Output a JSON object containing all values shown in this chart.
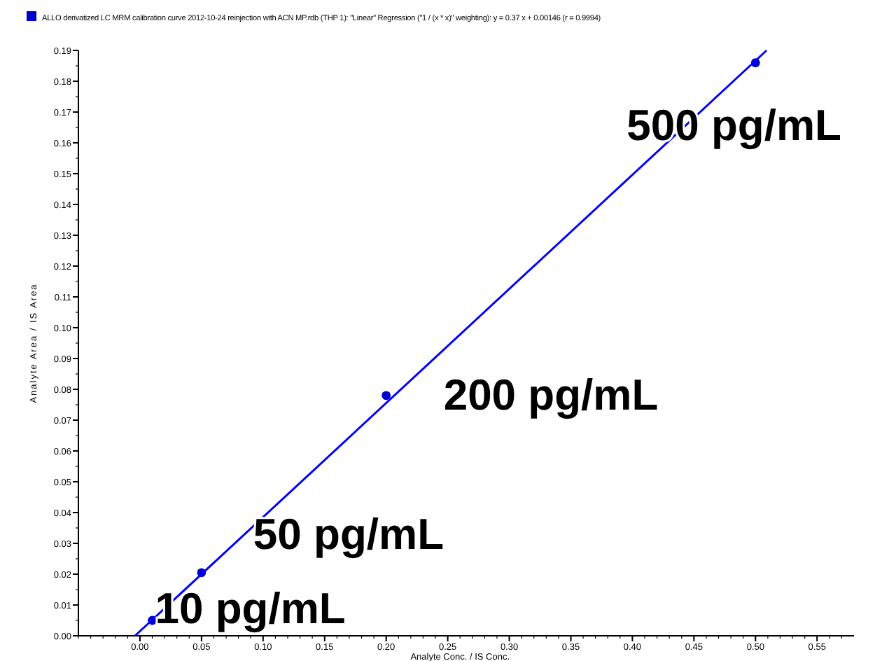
{
  "chart_data": {
    "type": "scatter",
    "title": "ALLO derivatized LC MRM calibration curve 2012-10-24 reinjection with ACN MP.rdb (THP 1): \"Linear\" Regression (\"1 / (x * x)\" weighting): y = 0.37 x + 0.00146 (r = 0.9994)",
    "xlabel": "Analyte Conc. / IS Conc.",
    "ylabel": "Analyte Area / IS Area",
    "series": [
      {
        "color": "#0000cc",
        "x": [
          0.01,
          0.05,
          0.2,
          0.5
        ],
        "values": [
          0.005,
          0.0205,
          0.078,
          0.186
        ]
      },
      {
        "type": "line",
        "marker": "none",
        "color": "#0000ff",
        "x": [
          -0.004,
          0.509
        ],
        "values": [
          0,
          0.19
        ]
      }
    ],
    "marker": "circle",
    "grid": false,
    "xlim": [
      -0.05,
      0.58
    ],
    "ylim": [
      0,
      0.19
    ],
    "xticks": [
      {
        "value": 0,
        "label": "0.00"
      },
      {
        "value": 0.05,
        "label": "0.05"
      },
      {
        "value": 0.1,
        "label": "0.10"
      },
      {
        "value": 0.15,
        "label": "0.15"
      },
      {
        "value": 0.2,
        "label": "0.20"
      },
      {
        "value": 0.25,
        "label": "0.25"
      },
      {
        "value": 0.3,
        "label": "0.30"
      },
      {
        "value": 0.35,
        "label": "0.35"
      },
      {
        "value": 0.4,
        "label": "0.40"
      },
      {
        "value": 0.45,
        "label": "0.45"
      },
      {
        "value": 0.5,
        "label": "0.50"
      },
      {
        "value": 0.55,
        "label": "0.55"
      }
    ],
    "yticks": [
      {
        "value": 0,
        "label": "0.00"
      },
      {
        "value": 0.01,
        "label": "0.01"
      },
      {
        "value": 0.02,
        "label": "0.02"
      },
      {
        "value": 0.03,
        "label": "0.03"
      },
      {
        "value": 0.04,
        "label": "0.04"
      },
      {
        "value": 0.05,
        "label": "0.05"
      },
      {
        "value": 0.06,
        "label": "0.06"
      },
      {
        "value": 0.07,
        "label": "0.07"
      },
      {
        "value": 0.08,
        "label": "0.08"
      },
      {
        "value": 0.09,
        "label": "0.09"
      },
      {
        "value": 0.1,
        "label": "0.10"
      },
      {
        "value": 0.11,
        "label": "0.11"
      },
      {
        "value": 0.12,
        "label": "0.12"
      },
      {
        "value": 0.13,
        "label": "0.13"
      },
      {
        "value": 0.14,
        "label": "0.14"
      },
      {
        "value": 0.15,
        "label": "0.15"
      },
      {
        "value": 0.16,
        "label": "0.16"
      },
      {
        "value": 0.17,
        "label": "0.17"
      },
      {
        "value": 0.18,
        "label": "0.18"
      },
      {
        "value": 0.19,
        "label": "0.19"
      }
    ],
    "annotations": [
      {
        "text": "10 pg/mL",
        "x": 0.01,
        "y": 0.005
      },
      {
        "text": "50 pg/mL",
        "x": 0.05,
        "y": 0.0205
      },
      {
        "text": "200 pg/mL",
        "x": 0.2,
        "y": 0.078
      },
      {
        "text": "500 pg/mL",
        "x": 0.5,
        "y": 0.186
      }
    ]
  }
}
